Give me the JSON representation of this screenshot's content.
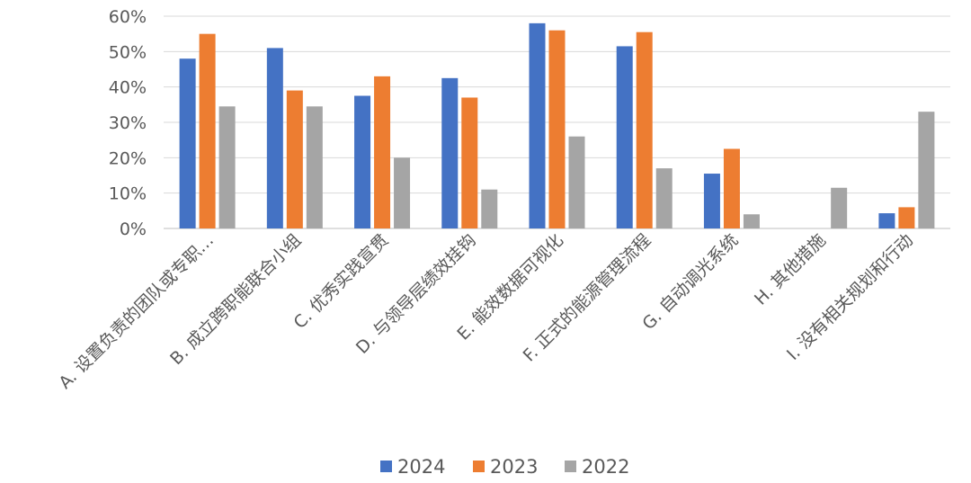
{
  "chart_data": {
    "type": "bar",
    "categories": [
      "A. 设置负责的团队或专职…",
      "B. 成立跨职能联合小组",
      "C. 优秀实践宣贯",
      "D. 与领导层绩效挂钩",
      "E. 能效数据可视化",
      "F. 正式的能源管理流程",
      "G. 自动调光系统",
      "H. 其他措施",
      "I. 没有相关规划和行动"
    ],
    "series": [
      {
        "name": "2024",
        "color": "#4472C4",
        "values": [
          48,
          51,
          37.5,
          42.5,
          58,
          51.5,
          15.5,
          0,
          4.3
        ]
      },
      {
        "name": "2023",
        "color": "#ED7D31",
        "values": [
          55,
          39,
          43,
          37,
          56,
          55.5,
          22.5,
          0,
          6
        ]
      },
      {
        "name": "2022",
        "color": "#A5A5A5",
        "values": [
          34.5,
          34.5,
          20,
          11,
          26,
          17,
          4,
          11.5,
          33
        ]
      }
    ],
    "yticks": [
      "0%",
      "10%",
      "20%",
      "30%",
      "40%",
      "50%",
      "60%"
    ],
    "ylim": [
      0,
      60
    ],
    "grid": true,
    "legend": "bottom"
  }
}
